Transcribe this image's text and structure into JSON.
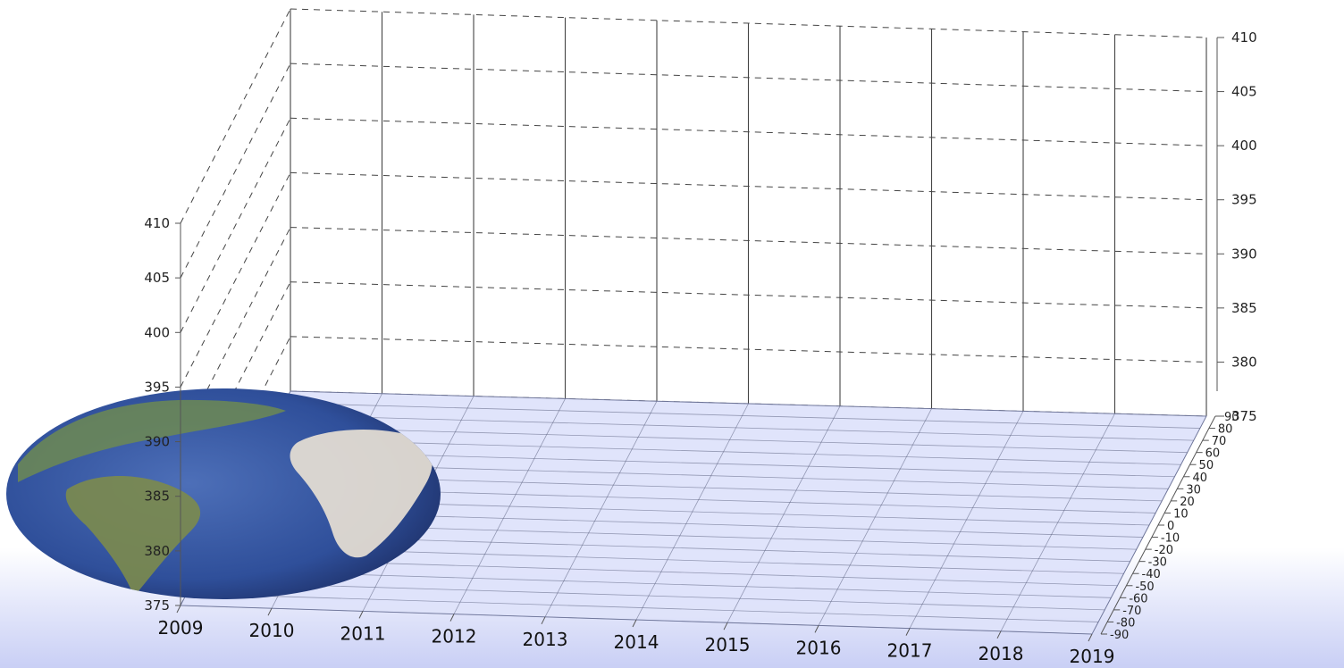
{
  "chart_data": {
    "type": "3d-surface",
    "title": "",
    "xlabel": "",
    "ylabel": "",
    "zlabel": "",
    "x": {
      "ticks": [
        "2009",
        "2010",
        "2011",
        "2012",
        "2013",
        "2014",
        "2015",
        "2016",
        "2017",
        "2018",
        "2019"
      ],
      "range": [
        2009,
        2019
      ]
    },
    "y": {
      "ticks": [
        "90",
        "80",
        "70",
        "60",
        "50",
        "40",
        "30",
        "20",
        "10",
        "0",
        "-10",
        "-20",
        "-30",
        "-40",
        "-50",
        "-60",
        "-70",
        "-80",
        "-90"
      ],
      "range": [
        -90,
        90
      ]
    },
    "z": {
      "ticks": [
        "375",
        "380",
        "385",
        "390",
        "395",
        "400",
        "405",
        "410"
      ],
      "range": [
        375,
        410
      ]
    },
    "grid": true,
    "floor_image": "globe-earth-africa-south-america",
    "series": []
  },
  "colors": {
    "floor": "#dfe3fb",
    "floor_grid": "#555b7a",
    "wall_grid": "#444444",
    "background_bottom": "#c9cff5"
  }
}
